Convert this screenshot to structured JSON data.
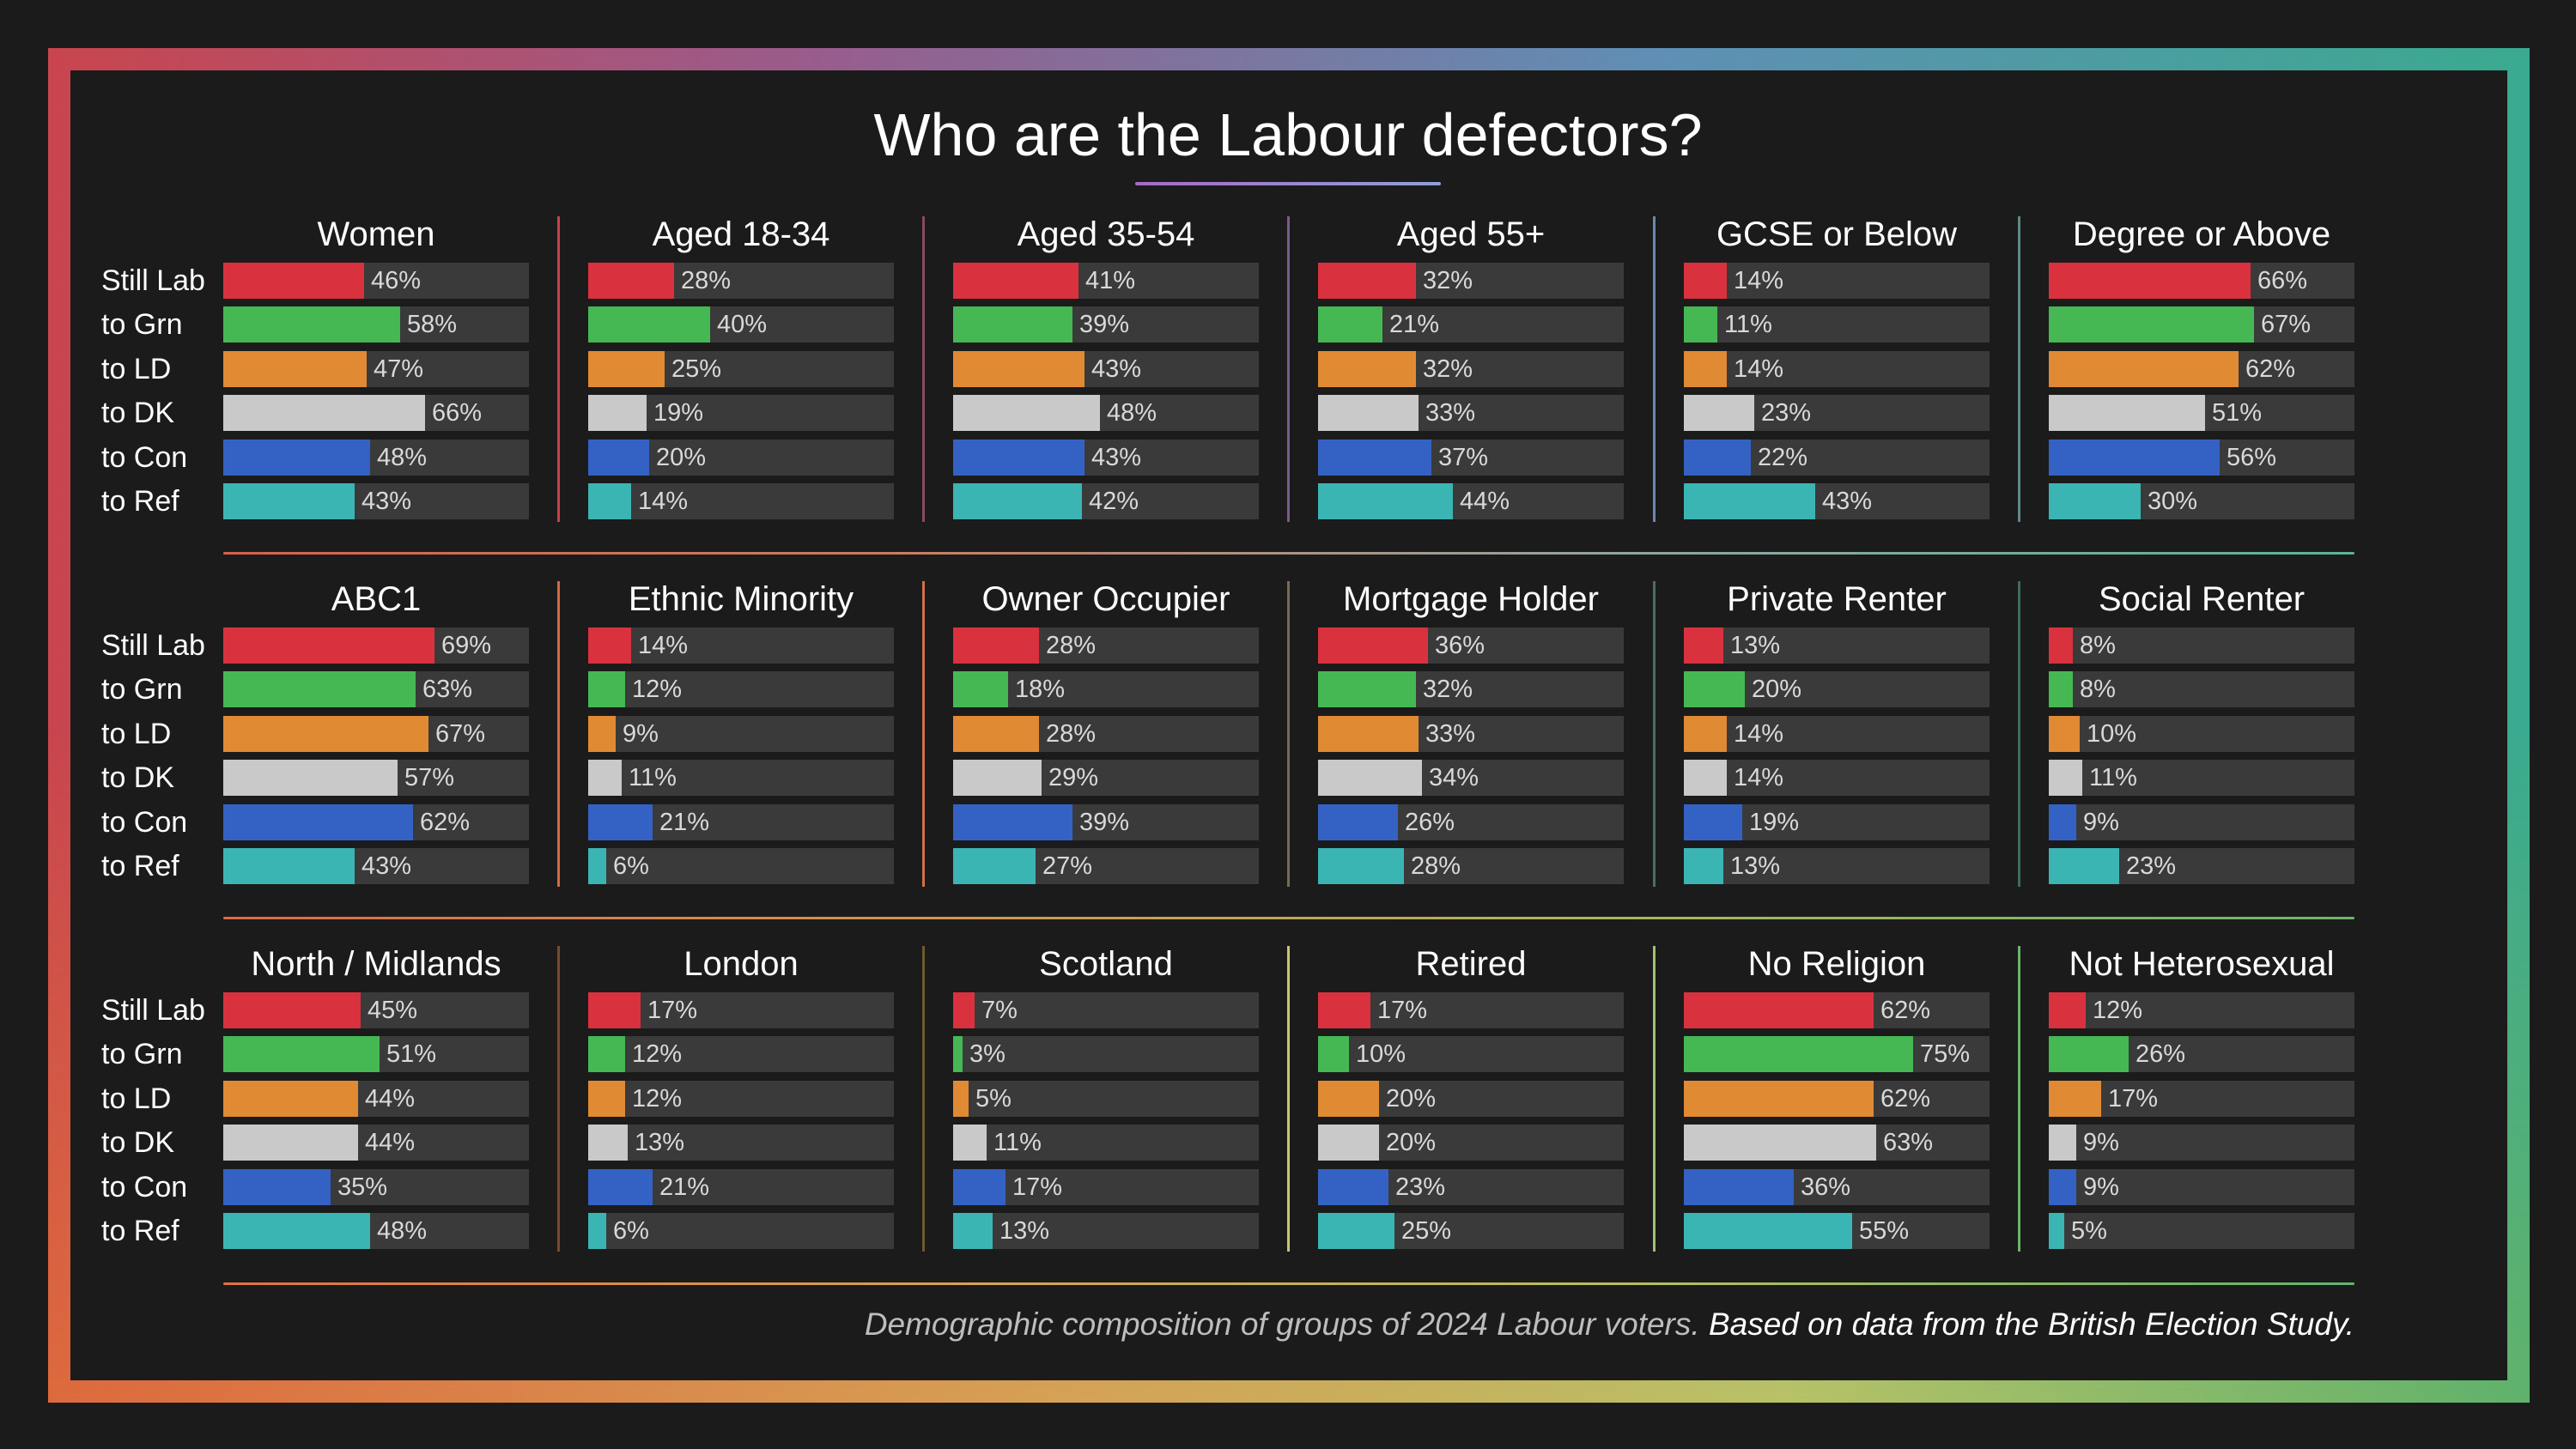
{
  "title": "Who are the Labour defectors?",
  "footnote": {
    "caption": "Demographic composition of groups of 2024 Labour voters.",
    "source": " Based on data from the British Election Study."
  },
  "colors": {
    "Still Lab": "#d9323e",
    "to Grn": "#45b853",
    "to LD": "#e08a34",
    "to DK": "#c9c9c9",
    "to Con": "#3462c4",
    "to Ref": "#3ab5b3",
    "track": "#3a3a3a"
  },
  "chart_data": {
    "type": "bar",
    "orientation": "horizontal",
    "unit": "%",
    "xlim": [
      0,
      100
    ],
    "categories": [
      "Still Lab",
      "to Grn",
      "to LD",
      "to DK",
      "to Con",
      "to Ref"
    ],
    "panels": [
      {
        "name": "Women",
        "values": [
          46,
          58,
          47,
          66,
          48,
          43
        ]
      },
      {
        "name": "Aged 18-34",
        "values": [
          28,
          40,
          25,
          19,
          20,
          14
        ]
      },
      {
        "name": "Aged 35-54",
        "values": [
          41,
          39,
          43,
          48,
          43,
          42
        ]
      },
      {
        "name": "Aged 55+",
        "values": [
          32,
          21,
          32,
          33,
          37,
          44
        ]
      },
      {
        "name": "GCSE or Below",
        "values": [
          14,
          11,
          14,
          23,
          22,
          43
        ]
      },
      {
        "name": "Degree or Above",
        "values": [
          66,
          67,
          62,
          51,
          56,
          30
        ]
      },
      {
        "name": "ABC1",
        "values": [
          69,
          63,
          67,
          57,
          62,
          43
        ]
      },
      {
        "name": "Ethnic Minority",
        "values": [
          14,
          12,
          9,
          11,
          21,
          6
        ]
      },
      {
        "name": "Owner Occupier",
        "values": [
          28,
          18,
          28,
          29,
          39,
          27
        ]
      },
      {
        "name": "Mortgage Holder",
        "values": [
          36,
          32,
          33,
          34,
          26,
          28
        ]
      },
      {
        "name": "Private Renter",
        "values": [
          13,
          20,
          14,
          14,
          19,
          13
        ]
      },
      {
        "name": "Social Renter",
        "values": [
          8,
          8,
          10,
          11,
          9,
          23
        ]
      },
      {
        "name": "North / Midlands",
        "values": [
          45,
          51,
          44,
          44,
          35,
          48
        ]
      },
      {
        "name": "London",
        "values": [
          17,
          12,
          12,
          13,
          21,
          6
        ]
      },
      {
        "name": "Scotland",
        "values": [
          7,
          3,
          5,
          11,
          17,
          13
        ]
      },
      {
        "name": "Retired",
        "values": [
          17,
          10,
          20,
          20,
          23,
          25
        ]
      },
      {
        "name": "No Religion",
        "values": [
          62,
          75,
          62,
          63,
          36,
          55
        ]
      },
      {
        "name": "Not Heterosexual",
        "values": [
          12,
          26,
          17,
          9,
          9,
          5
        ]
      }
    ]
  }
}
